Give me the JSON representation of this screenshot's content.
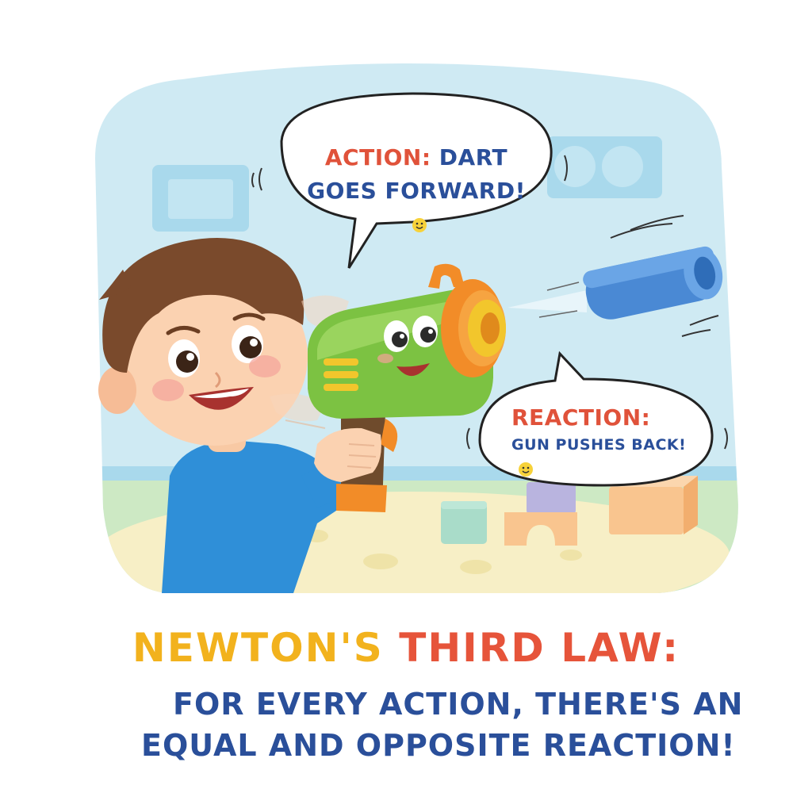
{
  "bubbles": {
    "action_label": "ACTION:",
    "action_line1": "DART",
    "action_line2": "GOES FORWARD!",
    "reaction_label": "REACTION:",
    "reaction_text": "GUN PUSHES BACK!"
  },
  "caption": {
    "title_part1": "NEWTON'S",
    "title_part2": "THIRD",
    "title_part3": "LAW:",
    "line1": "FOR EVERY ACTION, THERE'S AN",
    "line2": "EQUAL AND OPPOSITE REACTION!"
  },
  "colors": {
    "sky": "#cfeaf3",
    "floor": "#cde9c4",
    "rug": "#f7efc6",
    "gun_body": "#7cc242",
    "gun_accent": "#f28c28",
    "dart": "#4a89d4",
    "shirt": "#2f8fd8",
    "hair": "#7a4a2c"
  },
  "icons": [
    "smiley-icon"
  ]
}
